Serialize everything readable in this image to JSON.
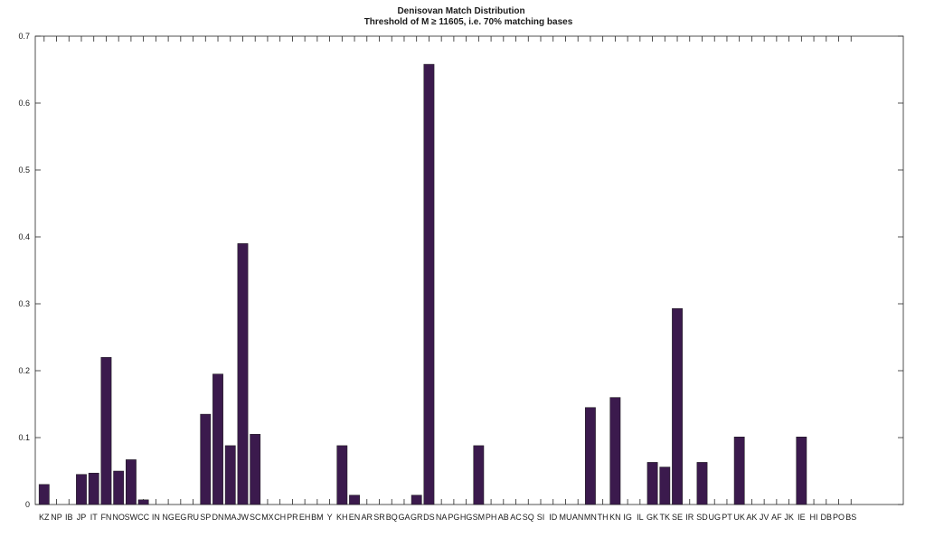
{
  "chart_data": {
    "type": "bar",
    "title": "Denisovan Match Distribution",
    "subtitle": "Threshold of M ≥ 11605, i.e. 70% matching bases",
    "xlabel": "",
    "ylabel": "",
    "ylim": [
      0,
      0.7
    ],
    "yticks": [
      "0",
      "0.1",
      "0.2",
      "0.3",
      "0.4",
      "0.5",
      "0.6",
      "0.7"
    ],
    "grid": false,
    "bar_color": "#3b1a4d",
    "categories": [
      "KZ",
      "NP",
      "IB",
      "JP",
      "IT",
      "FN",
      "NO",
      "SW",
      "CC",
      "IN",
      "NG",
      "EG",
      "RU",
      "SP",
      "DN",
      "MA",
      "JW",
      "SC",
      "MX",
      "CH",
      "PR",
      "EH",
      "BM",
      "Y",
      "KH",
      "EN",
      "AR",
      "SR",
      "BQ",
      "GA",
      "GR",
      "DS",
      "NA",
      "PG",
      "HG",
      "SM",
      "PH",
      "AB",
      "AC",
      "SQ",
      "SI",
      "ID",
      "MU",
      "AN",
      "MN",
      "TH",
      "KN",
      "IG",
      "IL",
      "GK",
      "TK",
      "SE",
      "IR",
      "SD",
      "UG",
      "PT",
      "UK",
      "AK",
      "JV",
      "AF",
      "JK",
      "IE",
      "HI",
      "DB",
      "PO",
      "BS"
    ],
    "values": [
      0.03,
      0,
      0,
      0.045,
      0.047,
      0.22,
      0.05,
      0.067,
      0.007,
      0,
      0,
      0,
      0,
      0.135,
      0.195,
      0.088,
      0.39,
      0.105,
      0,
      0,
      0,
      0,
      0,
      0,
      0.088,
      0.014,
      0,
      0,
      0,
      0,
      0.014,
      0.658,
      0,
      0,
      0,
      0.088,
      0,
      0,
      0,
      0,
      0,
      0,
      0,
      0,
      0.145,
      0,
      0.16,
      0,
      0,
      0.063,
      0.056,
      0.293,
      0,
      0.063,
      0,
      0,
      0.101,
      0,
      0,
      0,
      0,
      0.101,
      0,
      0,
      0,
      0
    ]
  }
}
